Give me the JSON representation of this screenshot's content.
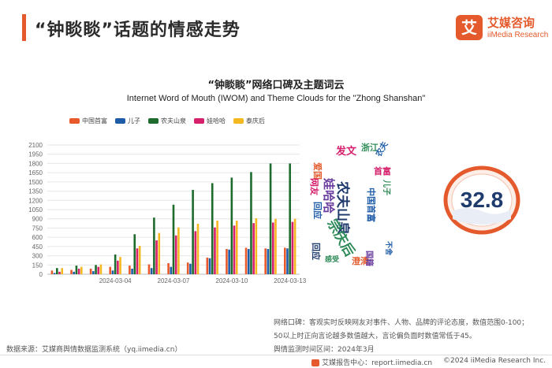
{
  "header": {
    "title": "“钟睒睒”话题的情感走势",
    "logo_mark": "艾",
    "logo_cn": "艾媒咨询",
    "logo_en": "iiMedia Research"
  },
  "colors": {
    "accent": "#e45a2c",
    "series": [
      "#e8592b",
      "#1f5ca8",
      "#1e6b2e",
      "#d6206b",
      "#f5b821"
    ]
  },
  "chart_data": {
    "type": "bar",
    "title": "“钟睒睒”网络口碑及主题词云",
    "subtitle": "Internet Word of Mouth (IWOM) and Theme Clouds for the \"Zhong Shanshan\"",
    "x": [
      "2024-03-01",
      "2024-03-02",
      "2024-03-03",
      "2024-03-04",
      "2024-03-05",
      "2024-03-06",
      "2024-03-07",
      "2024-03-08",
      "2024-03-09",
      "2024-03-10",
      "2024-03-11",
      "2024-03-12",
      "2024-03-13"
    ],
    "x_tick_labels": [
      "2024-03-04",
      "2024-03-07",
      "2024-03-10",
      "2024-03-13"
    ],
    "ylim": [
      0,
      2100
    ],
    "y_ticks": [
      0,
      150,
      300,
      450,
      600,
      750,
      900,
      1050,
      1200,
      1350,
      1500,
      1650,
      1800,
      1950,
      2100
    ],
    "grid": true,
    "legend_position": "top-left",
    "series": [
      {
        "name": "中国首富",
        "values": [
          60,
          70,
          90,
          120,
          140,
          160,
          180,
          190,
          270,
          410,
          430,
          420,
          430
        ]
      },
      {
        "name": "儿子",
        "values": [
          20,
          40,
          50,
          60,
          90,
          100,
          120,
          170,
          260,
          400,
          410,
          410,
          420
        ]
      },
      {
        "name": "农夫山泉",
        "values": [
          100,
          140,
          150,
          320,
          650,
          920,
          1130,
          1370,
          1480,
          1570,
          1660,
          1800,
          1800
        ]
      },
      {
        "name": "娃哈哈",
        "values": [
          40,
          90,
          120,
          220,
          420,
          550,
          630,
          700,
          760,
          790,
          830,
          840,
          850
        ]
      },
      {
        "name": "泰庆后",
        "values": [
          100,
          120,
          160,
          280,
          460,
          670,
          760,
          820,
          870,
          870,
          910,
          900,
          900
        ]
      }
    ]
  },
  "word_cloud": [
    {
      "text": "发文",
      "color": "#d6206b"
    },
    {
      "text": "浙江",
      "color": "#2e8b57"
    },
    {
      "text": "农夫",
      "color": "#1f5ca8"
    },
    {
      "text": "爱国",
      "color": "#e45a2c"
    },
    {
      "text": "农夫山泉",
      "color": "#1f3b6e"
    },
    {
      "text": "首富",
      "color": "#d6206b"
    },
    {
      "text": "娃哈哈",
      "color": "#6b3fa0"
    },
    {
      "text": "网友",
      "color": "#d6206b"
    },
    {
      "text": "宗庆后",
      "color": "#2e8b57"
    },
    {
      "text": "回应",
      "color": "#1f5ca8"
    },
    {
      "text": "中国首富",
      "color": "#1f5ca8"
    },
    {
      "text": "儿子",
      "color": "#2e8b57"
    },
    {
      "text": "澄清",
      "color": "#e45a2c"
    },
    {
      "text": "国籍",
      "color": "#6b3fa0"
    },
    {
      "text": "回应",
      "color": "#1f3b6e"
    },
    {
      "text": "感受",
      "color": "#2e8b57"
    },
    {
      "text": "不舍",
      "color": "#1f5ca8"
    }
  ],
  "score": {
    "value": "32.8",
    "ring_colors": [
      "#e45a2c",
      "#1f3b6e"
    ]
  },
  "notes": {
    "line1": "网络口碑：客观实时反映网友对事件、人物、品牌的评论态度，数值范围0-100；",
    "line2": "50以上时正向言论越多数值越大，言论偏负面时数值常低于45。",
    "line3": "舆情监测时间区间：2024年3月"
  },
  "source": "数据来源：艾媒商舆情数据监测系统（yq.iimedia.cn）",
  "footer": {
    "center": "艾媒报告中心：report.iimedia.cn",
    "copyright": "©2024  iiMedia Research  Inc."
  }
}
